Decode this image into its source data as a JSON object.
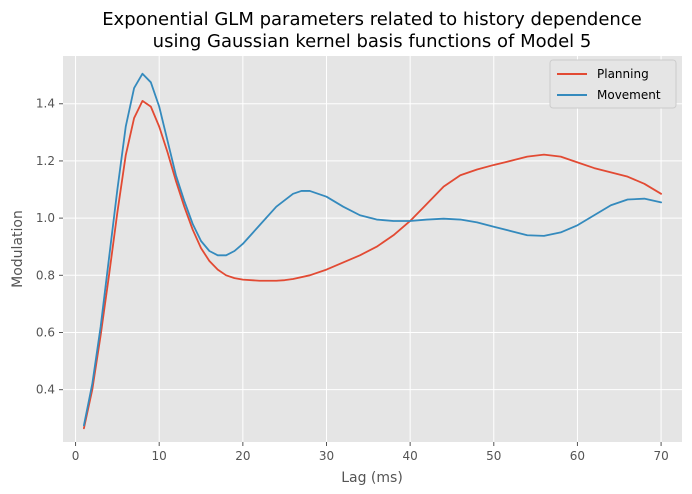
{
  "chart_data": {
    "type": "line",
    "title_lines": [
      "Exponential GLM parameters related to history dependence",
      "using Gaussian kernel basis functions of Model 5"
    ],
    "xlabel": "Lag (ms)",
    "ylabel": "Modulation",
    "xlim": [
      -1.5,
      72.5
    ],
    "ylim": [
      0.217,
      1.567
    ],
    "xticks": [
      0,
      10,
      20,
      30,
      40,
      50,
      60,
      70
    ],
    "yticks": [
      0.4,
      0.6,
      0.8,
      1.0,
      1.2,
      1.4
    ],
    "xtick_labels": [
      "0",
      "10",
      "20",
      "30",
      "40",
      "50",
      "60",
      "70"
    ],
    "ytick_labels": [
      "0.4",
      "0.6",
      "0.8",
      "1.0",
      "1.2",
      "1.4"
    ],
    "grid": true,
    "legend_position": "top-right",
    "series": [
      {
        "name": "Planning",
        "color": "#e24a33",
        "points": [
          [
            1,
            0.265
          ],
          [
            2,
            0.4
          ],
          [
            3,
            0.59
          ],
          [
            4,
            0.8
          ],
          [
            5,
            1.02
          ],
          [
            6,
            1.22
          ],
          [
            7,
            1.35
          ],
          [
            8,
            1.41
          ],
          [
            9,
            1.39
          ],
          [
            10,
            1.32
          ],
          [
            11,
            1.23
          ],
          [
            12,
            1.13
          ],
          [
            13,
            1.04
          ],
          [
            14,
            0.96
          ],
          [
            15,
            0.895
          ],
          [
            16,
            0.85
          ],
          [
            17,
            0.82
          ],
          [
            18,
            0.8
          ],
          [
            19,
            0.79
          ],
          [
            20,
            0.785
          ],
          [
            22,
            0.781
          ],
          [
            24,
            0.781
          ],
          [
            25,
            0.783
          ],
          [
            26,
            0.787
          ],
          [
            28,
            0.8
          ],
          [
            30,
            0.82
          ],
          [
            32,
            0.845
          ],
          [
            34,
            0.87
          ],
          [
            36,
            0.9
          ],
          [
            38,
            0.94
          ],
          [
            40,
            0.99
          ],
          [
            42,
            1.05
          ],
          [
            44,
            1.11
          ],
          [
            46,
            1.15
          ],
          [
            48,
            1.17
          ],
          [
            50,
            1.186
          ],
          [
            52,
            1.2
          ],
          [
            54,
            1.215
          ],
          [
            56,
            1.222
          ],
          [
            58,
            1.215
          ],
          [
            60,
            1.195
          ],
          [
            62,
            1.175
          ],
          [
            64,
            1.16
          ],
          [
            66,
            1.145
          ],
          [
            68,
            1.12
          ],
          [
            70,
            1.085
          ]
        ]
      },
      {
        "name": "Movement",
        "color": "#348abd",
        "points": [
          [
            1,
            0.275
          ],
          [
            2,
            0.42
          ],
          [
            3,
            0.62
          ],
          [
            4,
            0.86
          ],
          [
            5,
            1.1
          ],
          [
            6,
            1.32
          ],
          [
            7,
            1.455
          ],
          [
            8,
            1.505
          ],
          [
            9,
            1.475
          ],
          [
            10,
            1.39
          ],
          [
            11,
            1.27
          ],
          [
            12,
            1.15
          ],
          [
            13,
            1.06
          ],
          [
            14,
            0.98
          ],
          [
            15,
            0.92
          ],
          [
            16,
            0.885
          ],
          [
            17,
            0.87
          ],
          [
            18,
            0.87
          ],
          [
            19,
            0.885
          ],
          [
            20,
            0.91
          ],
          [
            22,
            0.975
          ],
          [
            24,
            1.04
          ],
          [
            26,
            1.085
          ],
          [
            27,
            1.095
          ],
          [
            28,
            1.095
          ],
          [
            30,
            1.075
          ],
          [
            32,
            1.04
          ],
          [
            34,
            1.01
          ],
          [
            36,
            0.995
          ],
          [
            38,
            0.99
          ],
          [
            40,
            0.99
          ],
          [
            42,
            0.995
          ],
          [
            44,
            0.998
          ],
          [
            46,
            0.995
          ],
          [
            48,
            0.985
          ],
          [
            50,
            0.97
          ],
          [
            52,
            0.955
          ],
          [
            54,
            0.94
          ],
          [
            56,
            0.938
          ],
          [
            58,
            0.95
          ],
          [
            60,
            0.975
          ],
          [
            62,
            1.01
          ],
          [
            64,
            1.045
          ],
          [
            66,
            1.065
          ],
          [
            68,
            1.068
          ],
          [
            70,
            1.055
          ]
        ]
      }
    ]
  }
}
